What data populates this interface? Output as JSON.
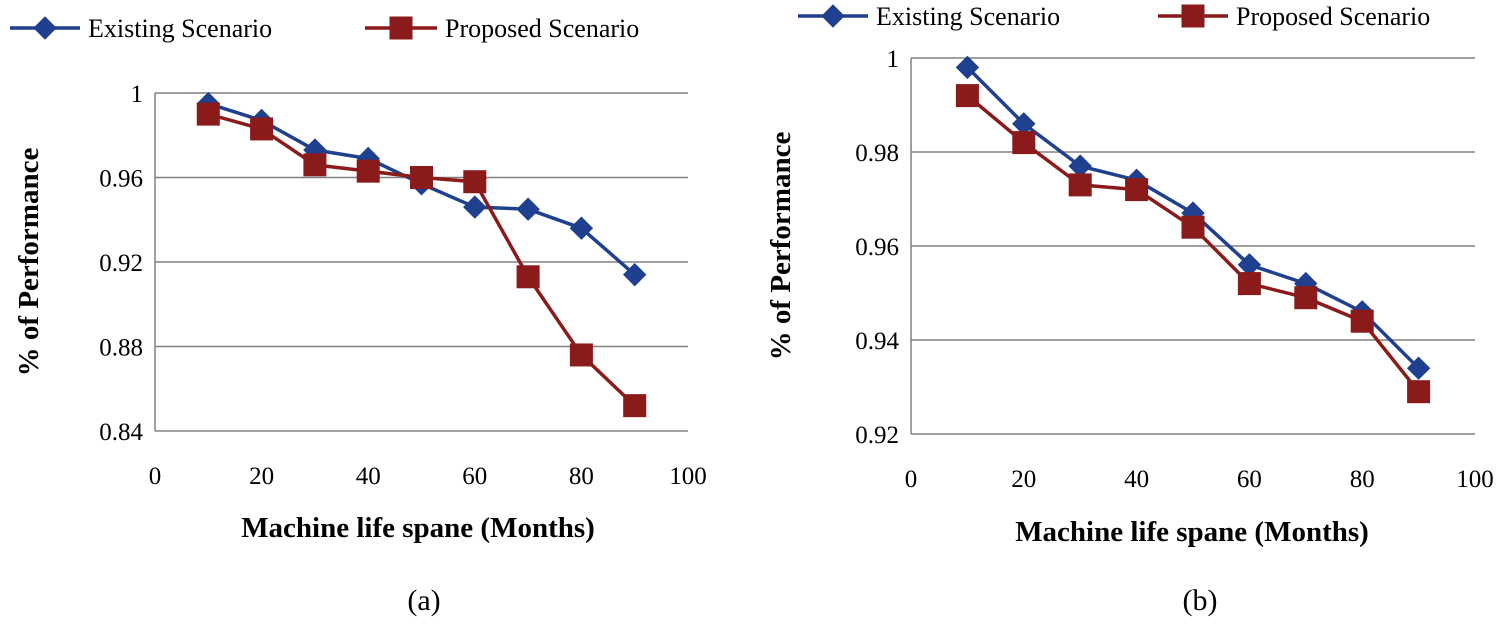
{
  "chart_data": [
    {
      "type": "line",
      "caption": "(a)",
      "xlabel": "Machine life spane (Months)",
      "ylabel": "% of Performance",
      "xlim": [
        0,
        100
      ],
      "ylim": [
        0.84,
        1.0
      ],
      "xticks": [
        0,
        20,
        40,
        60,
        80,
        100
      ],
      "xtick_labels": [
        "0",
        "20",
        "40",
        "60",
        "80",
        "100"
      ],
      "yticks": [
        0.84,
        0.88,
        0.92,
        0.96,
        1.0
      ],
      "ytick_labels": [
        "0.84",
        "0.88",
        "0.92",
        "0.96",
        "1"
      ],
      "grid": "horizontal",
      "legend": "top",
      "x": [
        10,
        20,
        30,
        40,
        50,
        60,
        70,
        80,
        90
      ],
      "series": [
        {
          "name": "Existing Scenario",
          "marker": "diamond",
          "color": "#1f3f8f",
          "values": [
            0.995,
            0.987,
            0.973,
            0.969,
            0.957,
            0.946,
            0.945,
            0.936,
            0.914
          ]
        },
        {
          "name": "Proposed Scenario",
          "marker": "square",
          "color": "#8b1a1a",
          "values": [
            0.99,
            0.983,
            0.966,
            0.963,
            0.96,
            0.958,
            0.913,
            0.876,
            0.852
          ]
        }
      ]
    },
    {
      "type": "line",
      "caption": "(b)",
      "xlabel": "Machine life spane (Months)",
      "ylabel": "% of Performance",
      "xlim": [
        0,
        100
      ],
      "ylim": [
        0.92,
        1.0
      ],
      "xticks": [
        0,
        20,
        40,
        60,
        80,
        100
      ],
      "xtick_labels": [
        "0",
        "20",
        "40",
        "60",
        "80",
        "100"
      ],
      "yticks": [
        0.92,
        0.94,
        0.96,
        0.98,
        1.0
      ],
      "ytick_labels": [
        "0.92",
        "0.94",
        "0.96",
        "0.98",
        "1"
      ],
      "grid": "horizontal",
      "legend": "top",
      "x": [
        10,
        20,
        30,
        40,
        50,
        60,
        70,
        80,
        90
      ],
      "series": [
        {
          "name": "Existing Scenario",
          "marker": "diamond",
          "color": "#1f3f8f",
          "values": [
            0.998,
            0.986,
            0.977,
            0.974,
            0.967,
            0.956,
            0.952,
            0.946,
            0.934
          ]
        },
        {
          "name": "Proposed Scenario",
          "marker": "square",
          "color": "#8b1a1a",
          "values": [
            0.992,
            0.982,
            0.973,
            0.972,
            0.964,
            0.952,
            0.949,
            0.944,
            0.929
          ]
        }
      ]
    }
  ]
}
